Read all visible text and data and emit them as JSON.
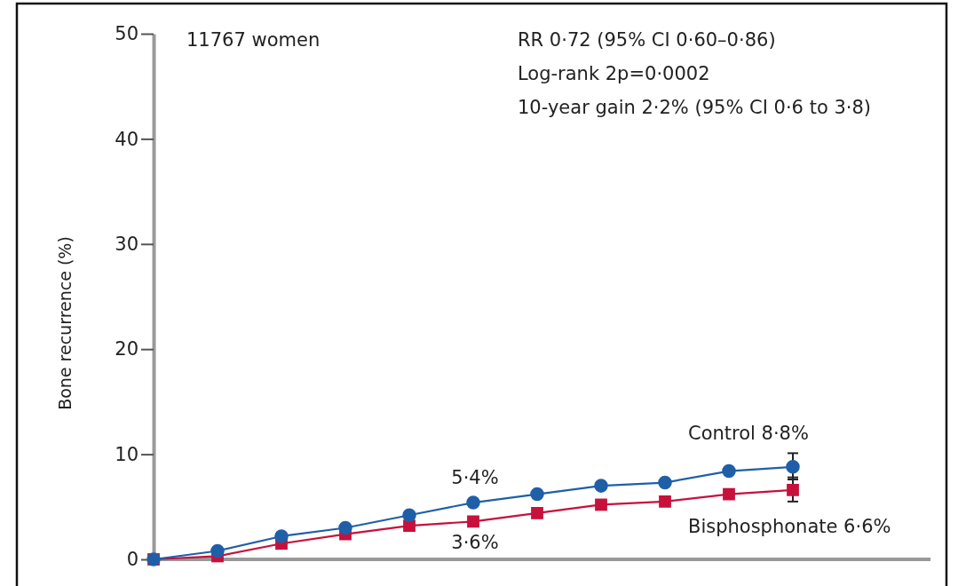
{
  "chart_data": {
    "type": "line",
    "ylabel": "Bone recurrence (%)",
    "categories": [
      null,
      null,
      null,
      null,
      null,
      null,
      null,
      null,
      null,
      null,
      null
    ],
    "ylim": [
      0,
      50
    ],
    "yticks": [
      0,
      10,
      20,
      30,
      40,
      50
    ],
    "tick_labels": "y",
    "grid": false,
    "series": [
      {
        "color": "#1f5fa8",
        "marker": "circle",
        "values": [
          0,
          0.8,
          2.2,
          3.0,
          4.2,
          5.4,
          6.2,
          7.0,
          7.3,
          8.4,
          8.8
        ],
        "errors": [
          null,
          null,
          null,
          null,
          null,
          null,
          null,
          null,
          null,
          null,
          [
            7.6,
            10.1
          ]
        ]
      },
      {
        "color": "#c8103c",
        "marker": "square",
        "values": [
          0,
          0.3,
          1.5,
          2.4,
          3.2,
          3.6,
          4.4,
          5.2,
          5.5,
          6.2,
          6.6
        ],
        "errors": [
          null,
          null,
          null,
          null,
          null,
          null,
          null,
          null,
          null,
          null,
          [
            5.5,
            7.8
          ]
        ]
      }
    ],
    "annotations": [
      "11767 women",
      "RR 0·72 (95% CI 0·60–0·86)",
      "Log-rank 2p=0·0002",
      "10-year gain 2·2% (95% CI 0·6 to 3·8)",
      "5·4%",
      "3·6%",
      "Control 8·8%",
      "Bisphosphonate 6·6%"
    ]
  }
}
